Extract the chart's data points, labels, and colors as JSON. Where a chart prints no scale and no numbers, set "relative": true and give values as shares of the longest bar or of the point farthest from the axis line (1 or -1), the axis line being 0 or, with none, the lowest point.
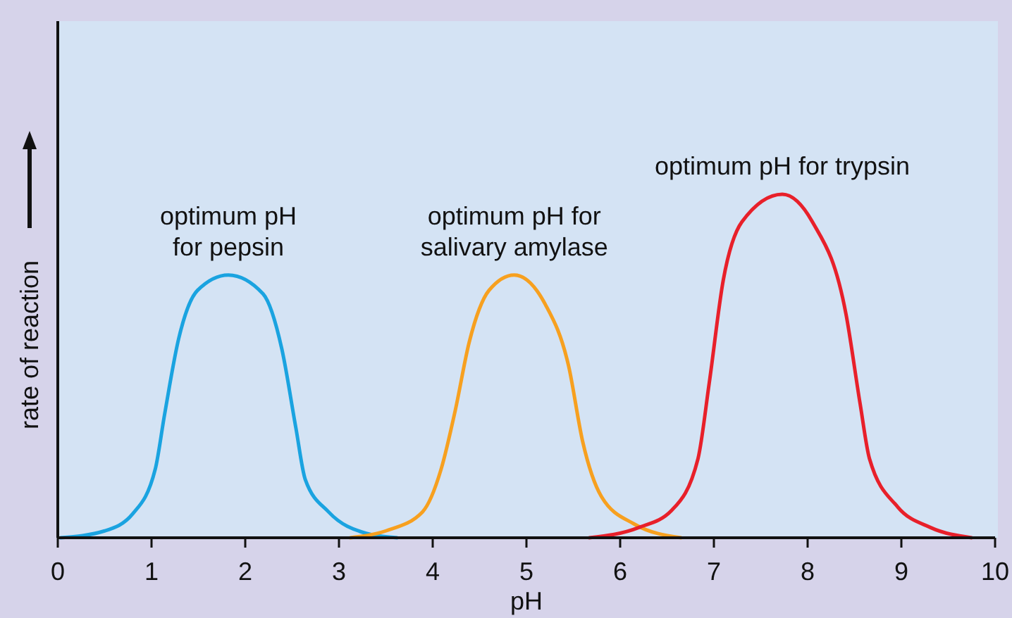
{
  "chart_data": {
    "type": "line",
    "relative": true,
    "xlabel": "pH",
    "ylabel": "rate of reaction",
    "xlim": [
      0,
      10
    ],
    "xticks": [
      0,
      1,
      2,
      3,
      4,
      5,
      6,
      7,
      8,
      9,
      10
    ],
    "grid": false,
    "marker": "none",
    "line_style": "solid",
    "series": [
      {
        "color": "#1aa3e0",
        "x": [
          0.03,
          0.5,
          0.8,
          1.04,
          1.14,
          1.29,
          1.49,
          1.82,
          2.19,
          2.39,
          2.54,
          2.64,
          2.89,
          3.29,
          3.62
        ],
        "values": [
          0,
          0.02,
          0.07,
          0.2,
          0.36,
          0.58,
          0.72,
          0.765,
          0.71,
          0.55,
          0.32,
          0.17,
          0.075,
          0.013,
          0
        ]
      },
      {
        "color": "#f7a01f",
        "x": [
          3.12,
          3.5,
          3.89,
          4.09,
          4.24,
          4.39,
          4.6,
          4.87,
          5.2,
          5.45,
          5.6,
          5.8,
          6.15,
          6.65
        ],
        "values": [
          0,
          0.02,
          0.075,
          0.2,
          0.37,
          0.57,
          0.72,
          0.765,
          0.68,
          0.5,
          0.28,
          0.12,
          0.04,
          0
        ]
      },
      {
        "color": "#e8202a",
        "x": [
          5.67,
          6.2,
          6.55,
          6.83,
          6.95,
          7.1,
          7.3,
          7.73,
          8.05,
          8.41,
          8.56,
          8.66,
          8.96,
          9.31,
          9.75
        ],
        "values": [
          0,
          0.03,
          0.08,
          0.23,
          0.45,
          0.75,
          0.92,
          1,
          0.92,
          0.65,
          0.39,
          0.23,
          0.09,
          0.03,
          0
        ]
      }
    ],
    "annotations": [
      {
        "text": "optimum pH\nfor pepsin",
        "x": 1.82,
        "y": 0.765
      },
      {
        "text": "optimum pH for\nsalivary amylase",
        "x": 4.87,
        "y": 0.765
      },
      {
        "text": "optimum pH for trypsin",
        "x": 7.73,
        "y": 1
      }
    ]
  }
}
